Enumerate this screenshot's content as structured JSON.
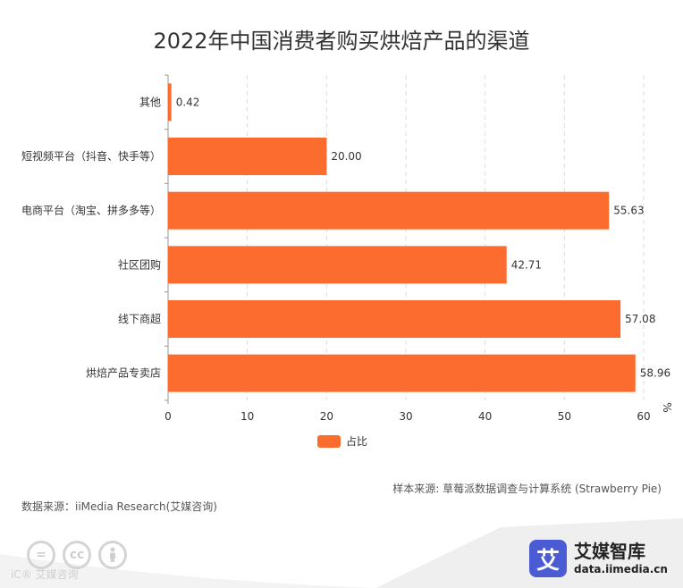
{
  "title": "2022年中国消费者购买烘焙产品的渠道",
  "chart_data": {
    "type": "bar",
    "orientation": "horizontal",
    "title": "2022年中国消费者购买烘焙产品的渠道",
    "xlabel": "%",
    "ylabel": "",
    "categories": [
      "其他",
      "短视频平台（抖音、快手等）",
      "电商平台（淘宝、拼多多等）",
      "社区团购",
      "线下商超",
      "烘焙产品专卖店"
    ],
    "series": [
      {
        "name": "占比",
        "values": [
          0.42,
          20.0,
          55.63,
          42.71,
          57.08,
          58.96
        ],
        "color": "#fd6c2f"
      }
    ],
    "data_labels": [
      "0.42",
      "20.00",
      "55.63",
      "42.71",
      "57.08",
      "58.96"
    ],
    "xlim": [
      0,
      60
    ],
    "x_ticks": [
      0,
      10,
      20,
      30,
      40,
      50,
      60
    ],
    "grid": "vertical dashed",
    "legend_position": "bottom-center"
  },
  "legend": {
    "label": "占比",
    "color": "#fd6c2f"
  },
  "notes": {
    "sample": "样本来源: 草莓派数据调查与计算系统 (Strawberry Pie)",
    "source": "数据来源：iiMedia Research(艾媒咨询)"
  },
  "footer": {
    "cc_icons": [
      "equals-icon",
      "cc-icon",
      "person-icon"
    ],
    "watermark": "iC® 艾媒咨询",
    "brand_logo_char": "艾",
    "brand_name": "艾媒智库",
    "brand_url": "data.iimedia.cn"
  }
}
